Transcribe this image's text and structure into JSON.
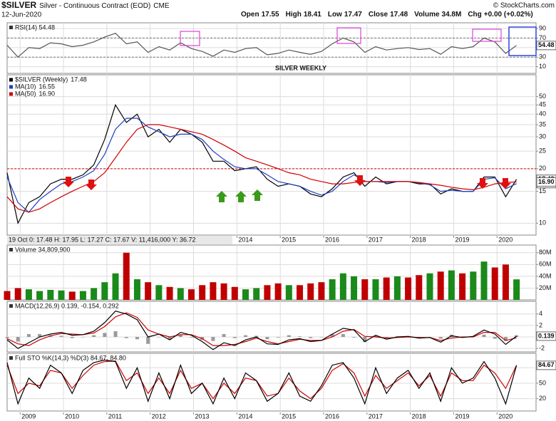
{
  "header": {
    "symbol": "$SILVER",
    "name": "Silver - Continuous Contract (EOD)",
    "exchange": "CME",
    "date": "12-Jun-2020",
    "credit": "© StockCharts.com",
    "quote": [
      {
        "label": "Open",
        "value": "17.55"
      },
      {
        "label": "High",
        "value": "18.41"
      },
      {
        "label": "Low",
        "value": "17.47"
      },
      {
        "label": "Close",
        "value": "17.48"
      },
      {
        "label": "Volume",
        "value": "34.8M"
      },
      {
        "label": "Chg",
        "value": "+0.00 (+0.02%)"
      }
    ]
  },
  "chart_data": [
    {
      "type": "line",
      "title": "RSI(14) 54.48",
      "annotation": "SILVER WEEKLY",
      "grid": true,
      "log": false,
      "x": [
        2008.7,
        2008.95,
        2009.2,
        2009.45,
        2009.7,
        2009.95,
        2010.2,
        2010.45,
        2010.7,
        2010.95,
        2011.2,
        2011.45,
        2011.7,
        2011.95,
        2012.2,
        2012.45,
        2012.7,
        2012.95,
        2013.2,
        2013.45,
        2013.7,
        2013.95,
        2014.2,
        2014.45,
        2014.7,
        2014.95,
        2015.2,
        2015.45,
        2015.7,
        2015.95,
        2016.2,
        2016.45,
        2016.7,
        2016.95,
        2017.2,
        2017.45,
        2017.7,
        2017.95,
        2018.2,
        2018.45,
        2018.7,
        2018.95,
        2019.2,
        2019.45,
        2019.7,
        2019.95,
        2020.2,
        2020.45
      ],
      "xlim": [
        2008.7,
        2020.9
      ],
      "xticks": [
        2009,
        2010,
        2011,
        2012,
        2013,
        2014,
        2015,
        2016,
        2017,
        2018,
        2019,
        2020
      ],
      "ylim": [
        -4,
        102
      ],
      "yticks": [
        90,
        70,
        50,
        30,
        10
      ],
      "hlines": [
        {
          "value": 70,
          "color": "#777"
        },
        {
          "value": 30,
          "color": "#777"
        }
      ],
      "series": [
        {
          "name": "RSI(14)",
          "color": "#555555",
          "last_label": "54.48",
          "values": [
            55,
            30,
            50,
            48,
            60,
            58,
            52,
            55,
            62,
            72,
            80,
            58,
            62,
            40,
            52,
            45,
            60,
            48,
            42,
            32,
            45,
            40,
            48,
            50,
            35,
            38,
            45,
            40,
            36,
            42,
            58,
            70,
            62,
            40,
            52,
            45,
            48,
            50,
            46,
            48,
            36,
            52,
            48,
            52,
            70,
            62,
            38,
            54.48
          ]
        }
      ]
    },
    {
      "type": "line",
      "grid": true,
      "log": true,
      "info": "19 Oct 0: 17.48 H: 17.95 L: 17.27 C: 17.67 V: 11,416,000 Y: 36.72",
      "x": [
        2008.7,
        2008.95,
        2009.2,
        2009.45,
        2009.7,
        2009.95,
        2010.2,
        2010.45,
        2010.7,
        2010.95,
        2011.2,
        2011.45,
        2011.7,
        2011.95,
        2012.2,
        2012.45,
        2012.7,
        2012.95,
        2013.2,
        2013.45,
        2013.7,
        2013.95,
        2014.2,
        2014.45,
        2014.7,
        2014.95,
        2015.2,
        2015.45,
        2015.7,
        2015.95,
        2016.2,
        2016.45,
        2016.7,
        2016.95,
        2017.2,
        2017.45,
        2017.7,
        2017.95,
        2018.2,
        2018.45,
        2018.7,
        2018.95,
        2019.2,
        2019.45,
        2019.7,
        2019.95,
        2020.2,
        2020.45
      ],
      "xlim": [
        2008.7,
        2020.9
      ],
      "xticks": [
        2009,
        2010,
        2011,
        2012,
        2013,
        2014,
        2015,
        2016,
        2017,
        2018,
        2019,
        2020
      ],
      "ylim": [
        8.6,
        66
      ],
      "yticks": [
        50,
        45,
        40,
        35,
        30,
        25,
        20,
        15,
        10
      ],
      "hlines": [
        {
          "value": 20,
          "color": "#e00000"
        }
      ],
      "series": [
        {
          "name": "$SILVER (Weekly)",
          "color": "#000000",
          "last_label": "17.48",
          "values": [
            19,
            10,
            13,
            14,
            16.5,
            17.5,
            17.5,
            18.5,
            21,
            29,
            45,
            36,
            40,
            30,
            33,
            28,
            33,
            31,
            28,
            22,
            22,
            19.5,
            20,
            20.5,
            17.5,
            16,
            16.5,
            16,
            14.5,
            14,
            15.5,
            18,
            19,
            16,
            18,
            16.5,
            17,
            17,
            16.5,
            16.5,
            14.5,
            15.5,
            15,
            15,
            18,
            18,
            14,
            17.48
          ]
        },
        {
          "name": "MA(10)",
          "color": "#1f3fbf",
          "last_label": "16.55",
          "values": [
            18,
            13,
            11.5,
            13.5,
            15,
            16.5,
            17,
            18,
            19.5,
            24,
            33,
            38,
            38,
            34,
            32,
            30,
            31,
            31,
            29,
            25,
            22.5,
            20.5,
            20,
            20,
            18.5,
            17,
            16.5,
            16,
            15,
            14.3,
            15,
            17,
            18.5,
            17,
            17,
            16.8,
            17,
            17,
            16.7,
            16.3,
            15,
            15.2,
            15,
            15,
            17.5,
            17.8,
            15.5,
            16.55
          ]
        },
        {
          "name": "MA(50)",
          "color": "#d00000",
          "last_label": "16.90",
          "values": [
            14,
            12,
            11.5,
            12,
            13,
            14,
            15,
            16,
            17,
            19,
            23,
            28,
            33,
            35,
            35,
            34,
            33,
            32,
            31,
            29,
            27,
            25,
            23,
            22,
            21,
            20,
            19,
            18.5,
            17.5,
            17,
            16.5,
            16.5,
            16.8,
            17,
            17,
            17,
            17,
            17,
            16.8,
            16.5,
            16.2,
            15.8,
            15.5,
            15.3,
            15.8,
            16.5,
            16.8,
            16.9
          ]
        }
      ]
    },
    {
      "type": "bar",
      "title": "Volume 34,809,900",
      "grid": true,
      "log": false,
      "x": [
        2008.7,
        2008.95,
        2009.2,
        2009.45,
        2009.7,
        2009.95,
        2010.2,
        2010.45,
        2010.7,
        2010.95,
        2011.2,
        2011.45,
        2011.7,
        2011.95,
        2012.2,
        2012.45,
        2012.7,
        2012.95,
        2013.2,
        2013.45,
        2013.7,
        2013.95,
        2014.2,
        2014.45,
        2014.7,
        2014.95,
        2015.2,
        2015.45,
        2015.7,
        2015.95,
        2016.2,
        2016.45,
        2016.7,
        2016.95,
        2017.2,
        2017.45,
        2017.7,
        2017.95,
        2018.2,
        2018.45,
        2018.7,
        2018.95,
        2019.2,
        2019.45,
        2019.7,
        2019.95,
        2020.2,
        2020.45
      ],
      "xlim": [
        2008.7,
        2020.9
      ],
      "xticks": [
        2009,
        2010,
        2011,
        2012,
        2013,
        2014,
        2015,
        2016,
        2017,
        2018,
        2019,
        2020
      ],
      "ylim": [
        0,
        93000000
      ],
      "yticks": [
        {
          "value": 80000000,
          "label": "80M"
        },
        {
          "value": 60000000,
          "label": "60M"
        },
        {
          "value": 40000000,
          "label": "40M"
        },
        {
          "value": 20000000,
          "label": "20M"
        }
      ],
      "series": [
        {
          "name": "Volume",
          "colors": [
            "#c00000",
            "#c00000",
            "#1a8a1a",
            "#1a8a1a",
            "#1a8a1a",
            "#1a8a1a",
            "#c00000",
            "#1a8a1a",
            "#1a8a1a",
            "#1a8a1a",
            "#1a8a1a",
            "#c00000",
            "#1a8a1a",
            "#c00000",
            "#1a8a1a",
            "#c00000",
            "#1a8a1a",
            "#c00000",
            "#c00000",
            "#c00000",
            "#c00000",
            "#c00000",
            "#1a8a1a",
            "#1a8a1a",
            "#c00000",
            "#c00000",
            "#1a8a1a",
            "#c00000",
            "#c00000",
            "#c00000",
            "#1a8a1a",
            "#1a8a1a",
            "#1a8a1a",
            "#c00000",
            "#1a8a1a",
            "#c00000",
            "#1a8a1a",
            "#c00000",
            "#c00000",
            "#1a8a1a",
            "#c00000",
            "#1a8a1a",
            "#c00000",
            "#1a8a1a",
            "#1a8a1a",
            "#c00000",
            "#c00000",
            "#1a8a1a"
          ],
          "values": [
            15000000,
            20000000,
            18000000,
            15000000,
            17000000,
            16000000,
            14000000,
            15000000,
            20000000,
            30000000,
            45000000,
            80000000,
            35000000,
            30000000,
            25000000,
            22000000,
            20000000,
            18000000,
            25000000,
            30000000,
            28000000,
            22000000,
            18000000,
            20000000,
            25000000,
            28000000,
            25000000,
            25000000,
            28000000,
            30000000,
            35000000,
            45000000,
            40000000,
            35000000,
            35000000,
            38000000,
            40000000,
            38000000,
            42000000,
            45000000,
            48000000,
            50000000,
            45000000,
            48000000,
            65000000,
            55000000,
            60000000,
            34809900
          ]
        }
      ]
    },
    {
      "type": "line",
      "title": "MACD(12,26,9) 0.139, -0.154, 0.292",
      "grid": true,
      "log": false,
      "x": [
        2008.7,
        2008.95,
        2009.2,
        2009.45,
        2009.7,
        2009.95,
        2010.2,
        2010.45,
        2010.7,
        2010.95,
        2011.2,
        2011.45,
        2011.7,
        2011.95,
        2012.2,
        2012.45,
        2012.7,
        2012.95,
        2013.2,
        2013.45,
        2013.7,
        2013.95,
        2014.2,
        2014.45,
        2014.7,
        2014.95,
        2015.2,
        2015.45,
        2015.7,
        2015.95,
        2016.2,
        2016.45,
        2016.7,
        2016.95,
        2017.2,
        2017.45,
        2017.7,
        2017.95,
        2018.2,
        2018.45,
        2018.7,
        2018.95,
        2019.2,
        2019.45,
        2019.7,
        2019.95,
        2020.2,
        2020.45
      ],
      "xlim": [
        2008.7,
        2020.9
      ],
      "xticks": [
        2009,
        2010,
        2011,
        2012,
        2013,
        2014,
        2015,
        2016,
        2017,
        2018,
        2019,
        2020
      ],
      "ylim": [
        -2.6,
        6.2
      ],
      "yticks": [
        4,
        2,
        0,
        -2
      ],
      "series": [
        {
          "name": "Histogram",
          "type": "bar",
          "color": "#9a9a9a",
          "values": [
            -0.2,
            -0.8,
            0.5,
            0.5,
            0.3,
            0.2,
            -0.2,
            0,
            0.3,
            0.7,
            1,
            -0.2,
            -0.4,
            -1.2,
            0,
            -0.5,
            0.4,
            -0.1,
            -0.5,
            -0.7,
            0.5,
            -0.2,
            0.3,
            0.2,
            -0.4,
            -0.1,
            0.3,
            0.1,
            -0.2,
            0,
            0.5,
            0.5,
            -0.1,
            -0.9,
            0.3,
            -0.2,
            0.1,
            0.1,
            -0.1,
            0,
            -0.3,
            0.4,
            -0.1,
            0.1,
            0.4,
            -0.3,
            -0.7,
            0.292
          ]
        },
        {
          "name": "Signal",
          "color": "#d00000",
          "values": [
            -0.3,
            -1.2,
            -1.5,
            -0.5,
            0.2,
            0.6,
            0.5,
            0.4,
            0.7,
            1.8,
            3.5,
            4.2,
            3.4,
            1.2,
            0.5,
            0,
            0.4,
            0.4,
            -0.3,
            -1.5,
            -1.5,
            -1.3,
            -0.8,
            -0.2,
            -0.8,
            -1.2,
            -0.8,
            -0.4,
            -0.6,
            -0.6,
            0,
            1,
            1.3,
            0.1,
            0,
            -0.2,
            -0.1,
            0,
            -0.1,
            -0.1,
            -0.6,
            -0.2,
            0,
            0,
            0.8,
            0.8,
            -0.6,
            -0.154
          ]
        },
        {
          "name": "MACD",
          "color": "#000000",
          "last_label": "0.139",
          "values": [
            -0.5,
            -2,
            -1,
            0,
            0.5,
            0.8,
            0.3,
            0.4,
            1,
            2.5,
            4.5,
            4,
            3,
            0,
            0.5,
            -0.5,
            0.8,
            0.3,
            -0.8,
            -2.2,
            -1,
            -1.5,
            -0.5,
            0,
            -1.2,
            -1.3,
            -0.5,
            -0.3,
            -0.8,
            -0.6,
            0.5,
            1.5,
            1.2,
            -0.8,
            0.3,
            -0.4,
            0,
            0.1,
            -0.2,
            -0.1,
            -0.9,
            0.2,
            -0.1,
            0.1,
            1.2,
            0.5,
            -1.3,
            0.139
          ]
        }
      ]
    },
    {
      "type": "line",
      "title": "Full STO %K(14,3) %D(3) 84.67, 84.80",
      "grid": true,
      "log": false,
      "x": [
        2008.7,
        2008.95,
        2009.2,
        2009.45,
        2009.7,
        2009.95,
        2010.2,
        2010.45,
        2010.7,
        2010.95,
        2011.2,
        2011.45,
        2011.7,
        2011.95,
        2012.2,
        2012.45,
        2012.7,
        2012.95,
        2013.2,
        2013.45,
        2013.7,
        2013.95,
        2014.2,
        2014.45,
        2014.7,
        2014.95,
        2015.2,
        2015.45,
        2015.7,
        2015.95,
        2016.2,
        2016.45,
        2016.7,
        2016.95,
        2017.2,
        2017.45,
        2017.7,
        2017.95,
        2018.2,
        2018.45,
        2018.7,
        2018.95,
        2019.2,
        2019.45,
        2019.7,
        2019.95,
        2020.2,
        2020.45
      ],
      "xlim": [
        2008.7,
        2020.9
      ],
      "xticks": [
        2009,
        2010,
        2011,
        2012,
        2013,
        2014,
        2015,
        2016,
        2017,
        2018,
        2019,
        2020
      ],
      "ylim": [
        -4,
        108
      ],
      "yticks": [
        80,
        50,
        20
      ],
      "series": [
        {
          "name": "%D(3)",
          "color": "#d00000",
          "values": [
            85,
            30,
            50,
            45,
            75,
            70,
            40,
            65,
            85,
            92,
            93,
            55,
            70,
            30,
            60,
            30,
            75,
            40,
            50,
            20,
            50,
            30,
            60,
            55,
            25,
            30,
            60,
            35,
            20,
            40,
            75,
            88,
            70,
            25,
            65,
            40,
            55,
            70,
            45,
            65,
            25,
            70,
            55,
            55,
            85,
            70,
            40,
            84.8
          ]
        },
        {
          "name": "%K(14,3)",
          "color": "#000000",
          "last_label": "84.67",
          "values": [
            90,
            10,
            60,
            40,
            85,
            70,
            30,
            75,
            90,
            95,
            92,
            40,
            80,
            15,
            70,
            20,
            85,
            30,
            50,
            10,
            60,
            20,
            70,
            55,
            15,
            30,
            70,
            25,
            15,
            45,
            85,
            90,
            60,
            10,
            80,
            30,
            60,
            75,
            40,
            70,
            15,
            80,
            50,
            60,
            92,
            60,
            10,
            84.67
          ]
        }
      ]
    }
  ]
}
